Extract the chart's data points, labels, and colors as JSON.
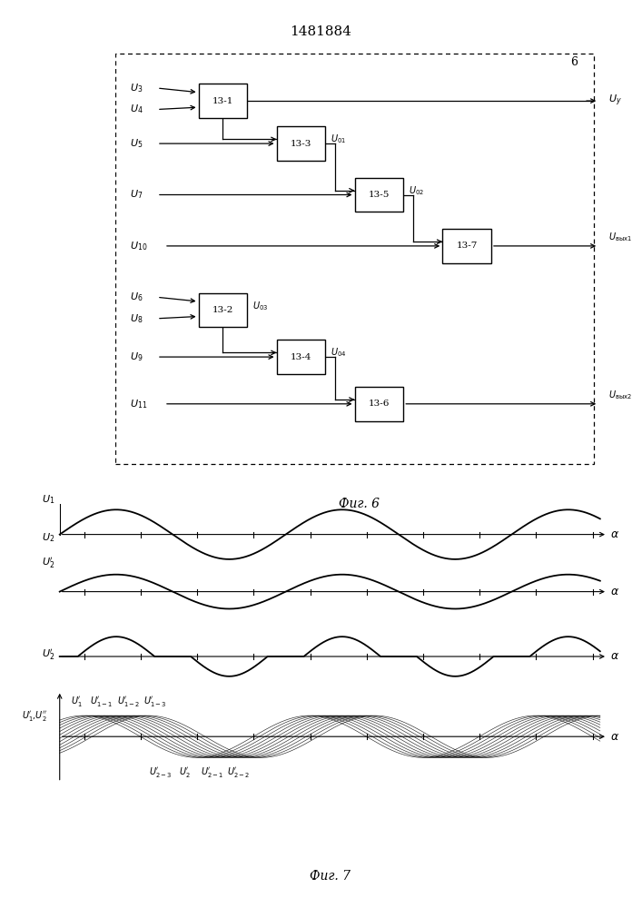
{
  "title": "1481884",
  "fig6_caption": "Фиг. 6",
  "fig7_caption": "Фиг. 7",
  "background_color": "#ffffff",
  "line_color": "#000000"
}
